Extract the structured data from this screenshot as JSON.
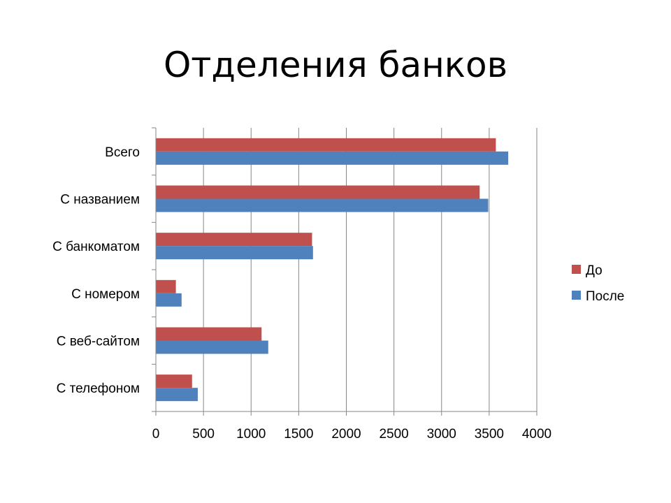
{
  "chart_data": {
    "type": "bar",
    "orientation": "horizontal",
    "title": "Отделения банков",
    "categories": [
      "Всего",
      "С названием",
      "С банкоматом",
      "С номером",
      "С веб-сайтом",
      "С телефоном"
    ],
    "series": [
      {
        "name": "До",
        "color": "#C0504D",
        "values": [
          3570,
          3400,
          1640,
          210,
          1110,
          380
        ]
      },
      {
        "name": "После",
        "color": "#4F81BD",
        "values": [
          3700,
          3490,
          1650,
          270,
          1180,
          440
        ]
      }
    ],
    "xticks": [
      0,
      500,
      1000,
      1500,
      2000,
      2500,
      3000,
      3500,
      4000
    ],
    "xlim": [
      0,
      4000
    ],
    "grid": "vertical",
    "legend": "right"
  }
}
